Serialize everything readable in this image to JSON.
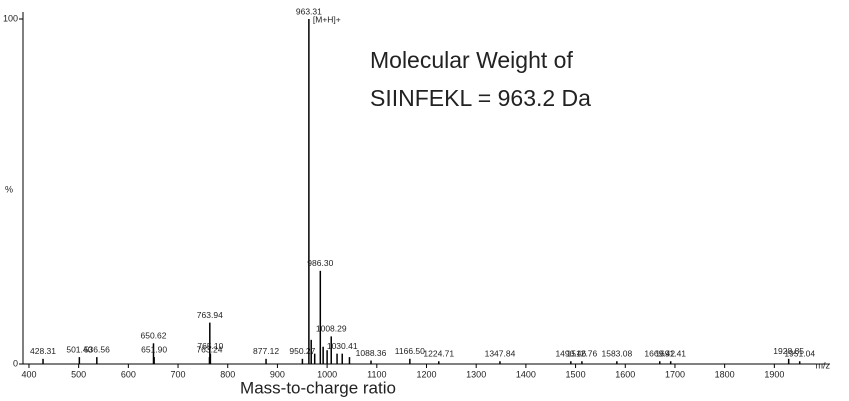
{
  "chart_data": {
    "type": "stem",
    "annotations": [
      "Molecular Weight of",
      "SIINFEKL = 963.2 Da"
    ],
    "peak_annotation": "[M+H]+",
    "x_label": "Mass-to-charge ratio",
    "x_unit": "m/z",
    "y_label": "%",
    "color": "#000000",
    "annotation_color": "#e02020",
    "peak_annotation_color": "#3030c0",
    "x": [
      428.31,
      501.4,
      536.56,
      650.62,
      651.9,
      763.24,
      763.94,
      765.1,
      877.12,
      950.27,
      963.31,
      986.3,
      1008.29,
      1030.41,
      1088.36,
      1166.5,
      1224.71,
      1347.84,
      1490.46,
      1512.76,
      1583.08,
      1669.42,
      1691.41,
      1928.85,
      1951.04
    ],
    "labels": [
      "428.31",
      "501.40",
      "536.56",
      "650.62",
      "651.90",
      "763.24",
      "763.94",
      "765.10",
      "877.12",
      "950.27",
      "963.31",
      "986.30",
      "1008.29",
      "1030.41",
      "1088.36",
      "1166.50",
      "1224.71",
      "1347.84",
      "1490.46",
      "1512.76",
      "1583.08",
      "1669.42",
      "1691.41",
      "1928.85",
      "1951.04"
    ],
    "values": [
      1.5,
      2,
      2,
      6,
      2,
      2,
      12,
      3,
      1.5,
      1.5,
      100,
      27,
      8,
      3,
      1,
      1.5,
      0.8,
      0.8,
      0.8,
      0.8,
      0.8,
      0.8,
      0.8,
      1.5,
      0.8
    ],
    "minor_peaks": {
      "x": [
        968,
        975,
        992,
        1000,
        1020,
        1045
      ],
      "values": [
        7,
        3,
        5,
        4,
        3,
        2
      ]
    },
    "xlim": [
      388,
      2010
    ],
    "xticks": [
      400,
      500,
      600,
      700,
      800,
      900,
      1000,
      1100,
      1200,
      1300,
      1400,
      1500,
      1600,
      1700,
      1800,
      1900
    ],
    "ylim": [
      0,
      100
    ],
    "yticks": [
      0,
      100
    ]
  }
}
